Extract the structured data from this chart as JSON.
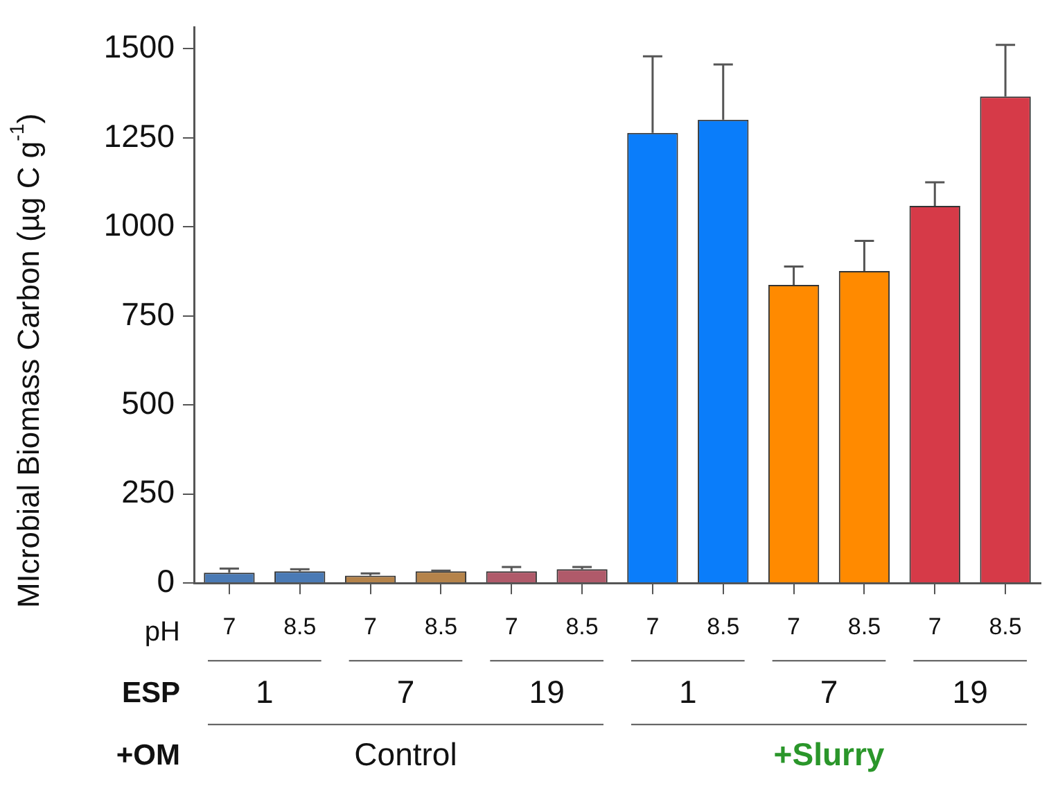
{
  "chart_data": {
    "type": "bar",
    "ylabel": "MIcrobial Biomass Carbon (µg C g$^{-1}$)",
    "categories": [
      "7",
      "8.5",
      "7",
      "8.5",
      "7",
      "8.5",
      "7",
      "8.5",
      "7",
      "8.5",
      "7",
      "8.5"
    ],
    "values": [
      29,
      33,
      21,
      33,
      33,
      39,
      1264,
      1301,
      837,
      876,
      1059,
      1366
    ],
    "errors": [
      12,
      6,
      6,
      2,
      12,
      6,
      215,
      155,
      52,
      85,
      66,
      145
    ],
    "colors": [
      "#4a7ab5",
      "#4a7ab5",
      "#b5834a",
      "#b5834a",
      "#b05a6a",
      "#b05a6a",
      "#0a7dfa",
      "#0a7dfa",
      "#ff8a00",
      "#ff8a00",
      "#d63a48",
      "#d63a48"
    ],
    "ylim": [
      0,
      1560
    ],
    "yticks": [
      0,
      250,
      500,
      750,
      1000,
      1250,
      1500
    ],
    "grid": false,
    "legend": false,
    "annotations": [
      "pH",
      "ESP",
      "+OM",
      "1",
      "7",
      "19",
      "1",
      "7",
      "19",
      "Control",
      "+Slurry"
    ]
  }
}
